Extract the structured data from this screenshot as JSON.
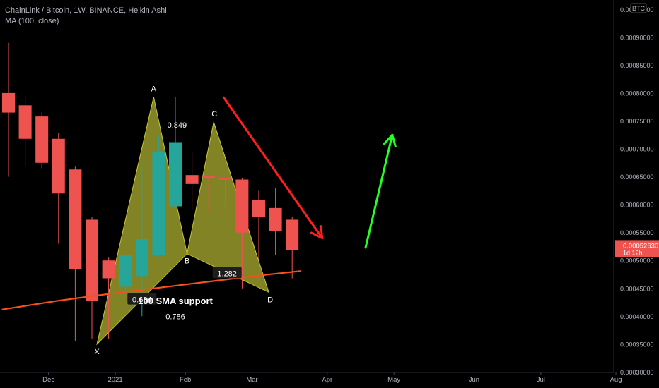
{
  "header": {
    "title": "ChainLink / Bitcoin, 1W, BINANCE, Heikin Ashi",
    "indicator": "MA (100, close)"
  },
  "colors": {
    "background": "#000000",
    "bull": "#26a69a",
    "bear": "#ef5350",
    "ma_line": "#f4511e",
    "pattern_fill": "#a6a82e",
    "arrow_down": "#ff1f1f",
    "arrow_up": "#22ff22",
    "price_badge": "#ef5350"
  },
  "chart_data": {
    "type": "candlestick",
    "title": "ChainLink / Bitcoin, 1W, BINANCE, Heikin Ashi",
    "y_axis": {
      "label": "BTC",
      "ylim": [
        0.00029,
        0.00096
      ],
      "ticks": [
        "0.00095000",
        "0.00090000",
        "0.00085000",
        "0.00080000",
        "0.00075000",
        "0.00070000",
        "0.00065000",
        "0.00060000",
        "0.00055000",
        "0.00050000",
        "0.00045000",
        "0.00040000",
        "0.00035000",
        "0.00030000"
      ]
    },
    "x_axis": {
      "ticks": [
        {
          "label": "Dec",
          "week": 2.4
        },
        {
          "label": "2021",
          "week": 6.4
        },
        {
          "label": "Feb",
          "week": 10.6
        },
        {
          "label": "Mar",
          "week": 14.6
        },
        {
          "label": "Apr",
          "week": 19.1
        },
        {
          "label": "May",
          "week": 23.1
        },
        {
          "label": "Jun",
          "week": 27.9
        },
        {
          "label": "Jul",
          "week": 31.9
        },
        {
          "label": "Aug",
          "week": 36.4
        }
      ]
    },
    "candles": [
      {
        "week": 0,
        "open": 0.0008,
        "close": 0.000765,
        "high": 0.00089,
        "low": 0.00065
      },
      {
        "week": 1,
        "open": 0.000778,
        "close": 0.000718,
        "high": 0.000795,
        "low": 0.00067
      },
      {
        "week": 2,
        "open": 0.000758,
        "close": 0.000675,
        "high": 0.000765,
        "low": 0.000665
      },
      {
        "week": 3,
        "open": 0.000718,
        "close": 0.00062,
        "high": 0.000728,
        "low": 0.00053
      },
      {
        "week": 4,
        "open": 0.000663,
        "close": 0.000485,
        "high": 0.000668,
        "low": 0.000355
      },
      {
        "week": 5,
        "open": 0.000573,
        "close": 0.000428,
        "high": 0.000578,
        "low": 0.00036
      },
      {
        "week": 6,
        "open": 0.0005,
        "close": 0.000468,
        "high": 0.000505,
        "low": 0.00036
      },
      {
        "week": 7,
        "open": 0.000453,
        "close": 0.00051,
        "high": 0.00051,
        "low": 0.000438
      },
      {
        "week": 8,
        "open": 0.000472,
        "close": 0.000538,
        "high": 0.000668,
        "low": 0.0004
      },
      {
        "week": 9,
        "open": 0.00051,
        "close": 0.000695,
        "high": 0.000725,
        "low": 0.000505
      },
      {
        "week": 10,
        "open": 0.000597,
        "close": 0.000712,
        "high": 0.000793,
        "low": 0.00059
      },
      {
        "week": 11,
        "open": 0.000653,
        "close": 0.000637,
        "high": 0.000695,
        "low": 0.00059
      },
      {
        "week": 12,
        "open": 0.000651,
        "close": 0.000648,
        "high": 0.000651,
        "low": 0.000583
      },
      {
        "week": 13,
        "open": 0.000648,
        "close": 0.000645,
        "high": 0.000648,
        "low": 0.000595
      },
      {
        "week": 14,
        "open": 0.000645,
        "close": 0.00055,
        "high": 0.000648,
        "low": 0.00045
      },
      {
        "week": 15,
        "open": 0.000608,
        "close": 0.000578,
        "high": 0.000625,
        "low": 0.0005
      },
      {
        "week": 16,
        "open": 0.000594,
        "close": 0.000553,
        "high": 0.00063,
        "low": 0.00051
      },
      {
        "week": 17,
        "open": 0.000573,
        "close": 0.000518,
        "high": 0.000578,
        "low": 0.000468
      }
    ],
    "ma": {
      "name": "MA (100, close)",
      "points": [
        {
          "week": -0.4,
          "value": 0.000412
        },
        {
          "week": 3,
          "value": 0.000428
        },
        {
          "week": 6,
          "value": 0.00044
        },
        {
          "week": 9,
          "value": 0.000451
        },
        {
          "week": 12,
          "value": 0.000462
        },
        {
          "week": 15,
          "value": 0.000473
        },
        {
          "week": 17.5,
          "value": 0.000481
        }
      ]
    },
    "last_price": {
      "value": "0.00052630",
      "countdown": "1d 12h",
      "level": 0.0005263
    },
    "harmonic_pattern": {
      "points": {
        "X": {
          "week": 5.3,
          "price": 0.00035
        },
        "A": {
          "week": 8.7,
          "price": 0.000793
        },
        "B": {
          "week": 10.7,
          "price": 0.000512
        },
        "C": {
          "week": 12.3,
          "price": 0.000748
        },
        "D": {
          "week": 15.6,
          "price": 0.000443
        }
      },
      "ratios": {
        "XAB": {
          "text": "0.634",
          "week": 8.0,
          "price": 0.00043
        },
        "ABC": {
          "text": "0.849",
          "week": 10.1,
          "price": 0.000743
        },
        "BCD": {
          "text": "1.282",
          "week": 13.1,
          "price": 0.000477
        },
        "XAD": {
          "text": "0.786",
          "week": 10.0,
          "price": 0.0004
        }
      }
    },
    "annotations": [
      {
        "text": "100 SMA support",
        "week": 10.0,
        "price": 0.000427
      }
    ],
    "arrows": [
      {
        "kind": "down",
        "from": {
          "week": 12.9,
          "price": 0.000792
        },
        "to": {
          "week": 18.8,
          "price": 0.00054
        }
      },
      {
        "kind": "up",
        "from": {
          "week": 21.4,
          "price": 0.000523
        },
        "to": {
          "week": 23.0,
          "price": 0.000725
        }
      }
    ]
  }
}
